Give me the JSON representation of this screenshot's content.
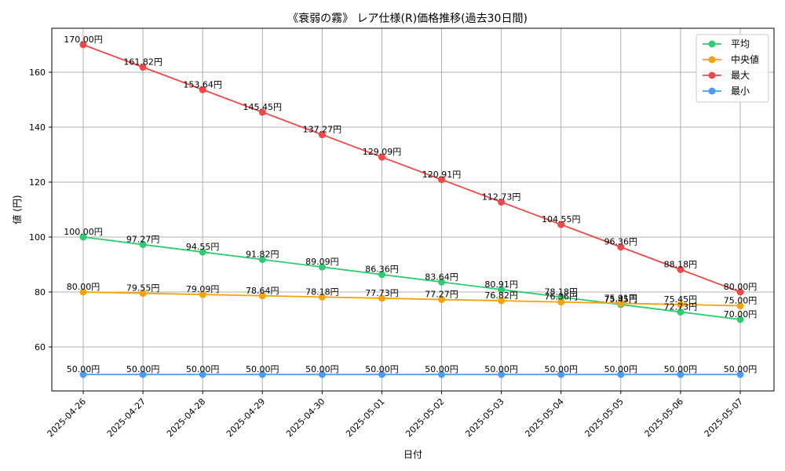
{
  "chart_data": {
    "type": "line",
    "title": "《衰弱の霧》 レア仕様(R)価格推移(過去30日間)",
    "xlabel": "日付",
    "ylabel": "値 (円)",
    "ylim": [
      44,
      176
    ],
    "yticks": [
      60,
      80,
      100,
      120,
      140,
      160
    ],
    "grid": true,
    "legend_position": "top-right",
    "value_suffix": "円",
    "categories": [
      "2025-04-26",
      "2025-04-27",
      "2025-04-28",
      "2025-04-29",
      "2025-04-30",
      "2025-05-01",
      "2025-05-02",
      "2025-05-03",
      "2025-05-04",
      "2025-05-05",
      "2025-05-06",
      "2025-05-07"
    ],
    "series": [
      {
        "name": "平均",
        "color": "#2ecc71",
        "values": [
          100.0,
          97.27,
          94.55,
          91.82,
          89.09,
          86.36,
          83.64,
          80.91,
          78.18,
          75.45,
          72.73,
          70.0
        ]
      },
      {
        "name": "中央値",
        "color": "#f5a30a",
        "values": [
          80.0,
          79.55,
          79.09,
          78.64,
          78.18,
          77.73,
          77.27,
          76.82,
          76.36,
          75.91,
          75.45,
          75.0
        ]
      },
      {
        "name": "最大",
        "color": "#f04848",
        "values": [
          170.0,
          161.82,
          153.64,
          145.45,
          137.27,
          129.09,
          120.91,
          112.73,
          104.55,
          96.36,
          88.18,
          80.0
        ]
      },
      {
        "name": "最小",
        "color": "#4c9cf2",
        "values": [
          50.0,
          50.0,
          50.0,
          50.0,
          50.0,
          50.0,
          50.0,
          50.0,
          50.0,
          50.0,
          50.0,
          50.0
        ]
      }
    ]
  }
}
